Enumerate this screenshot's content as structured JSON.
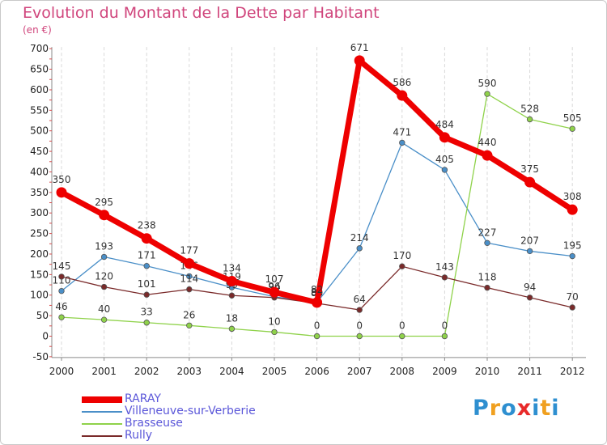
{
  "title": "Evolution du Montant de la Dette par Habitant",
  "subtitle": "(en €)",
  "logo": {
    "text": "Proxiti",
    "colors": [
      "#2e8fd0",
      "#f0a020",
      "#2e8fd0",
      "#e82a2a",
      "#2e8fd0",
      "#f0a020",
      "#2e8fd0"
    ]
  },
  "chart_data": {
    "type": "line",
    "x": [
      "2000",
      "2001",
      "2002",
      "2003",
      "2004",
      "2005",
      "2006",
      "2007",
      "2008",
      "2009",
      "2010",
      "2011",
      "2012"
    ],
    "ylim": [
      -50,
      700
    ],
    "yticks": [
      -50,
      0,
      50,
      100,
      150,
      200,
      250,
      300,
      350,
      400,
      450,
      500,
      550,
      600,
      650,
      700
    ],
    "grid": "vertical dashed",
    "legend_position": "bottom-left",
    "series": [
      {
        "name": "Villeneuve-sur-Verberie",
        "color": "#4a8fc8",
        "width": 1.3,
        "marker": 3.3,
        "values": [
          110,
          193,
          171,
          146,
          119,
          96,
          82,
          214,
          471,
          405,
          227,
          207,
          195
        ],
        "labels": [
          "110",
          "193",
          "171",
          "146",
          "119",
          "96",
          "82",
          "214",
          "471",
          "405",
          "227",
          "207",
          "195"
        ]
      },
      {
        "name": "Brasseuse",
        "color": "#8fd24a",
        "width": 1.3,
        "marker": 3.3,
        "values": [
          46,
          40,
          33,
          26,
          18,
          10,
          0,
          0,
          0,
          0,
          590,
          528,
          505
        ],
        "labels": [
          "46",
          "40",
          "33",
          "26",
          "18",
          "10",
          "0",
          "0",
          "0",
          "0",
          "590",
          "528",
          "505"
        ]
      },
      {
        "name": "Rully",
        "color": "#7a2a2a",
        "width": 1.3,
        "marker": 3.3,
        "values": [
          145,
          120,
          101,
          114,
          99,
          94,
          80,
          64,
          170,
          143,
          118,
          94,
          70
        ],
        "labels": [
          "145",
          "120",
          "101",
          "114",
          "99",
          "94",
          "80",
          "64",
          "170",
          "143",
          "118",
          "94",
          "70"
        ]
      },
      {
        "name": "RARAY",
        "color": "#ee0000",
        "width": 7,
        "marker": 6.5,
        "values": [
          350,
          295,
          238,
          177,
          134,
          107,
          82,
          671,
          586,
          484,
          440,
          375,
          308
        ],
        "labels": [
          "350",
          "295",
          "238",
          "177",
          "134",
          "107",
          "82",
          "671",
          "586",
          "484",
          "440",
          "375",
          "308"
        ]
      }
    ]
  },
  "legend": [
    {
      "label": "RARAY",
      "color": "#ee0000",
      "thick": 8
    },
    {
      "label": "Villeneuve-sur-Verberie",
      "color": "#4a8fc8",
      "thick": 2
    },
    {
      "label": "Brasseuse",
      "color": "#8fd24a",
      "thick": 2
    },
    {
      "label": "Rully",
      "color": "#7a2a2a",
      "thick": 2
    }
  ]
}
